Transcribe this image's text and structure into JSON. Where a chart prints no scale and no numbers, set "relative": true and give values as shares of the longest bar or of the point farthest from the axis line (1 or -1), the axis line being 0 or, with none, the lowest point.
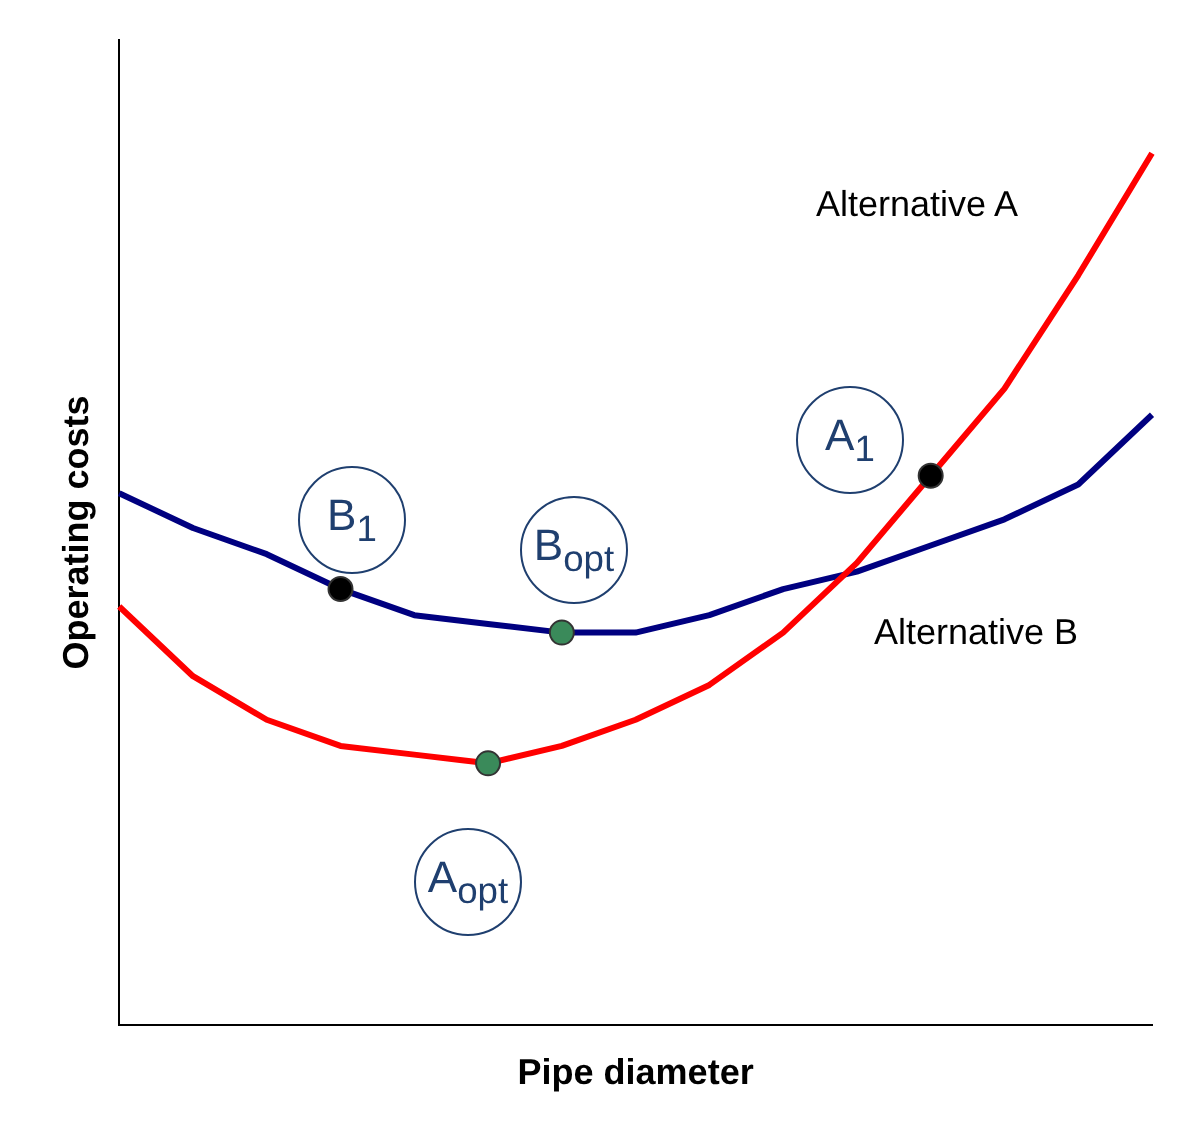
{
  "chart_data": {
    "type": "line",
    "relative": true,
    "xlabel": "Pipe diameter",
    "ylabel": "Operating costs",
    "legend": false,
    "grid": false,
    "categories": [
      null,
      null,
      null,
      null,
      null,
      null,
      null,
      null,
      null,
      null,
      null,
      null,
      null,
      null,
      null
    ],
    "series": [
      {
        "name": "Alternative A",
        "color": "#ff0000",
        "values": [
          0.48,
          0.4,
          0.35,
          0.32,
          0.31,
          0.3,
          0.32,
          0.35,
          0.39,
          0.45,
          0.53,
          0.63,
          0.73,
          0.86,
          1
        ],
        "colors": [
          null,
          null,
          null,
          null,
          null,
          "#3a8a5a",
          null,
          null,
          null,
          null,
          null,
          "#000000",
          null,
          null,
          null
        ]
      },
      {
        "name": "Alternative B",
        "color": "#000080",
        "values": [
          0.61,
          0.57,
          0.54,
          0.5,
          0.47,
          0.46,
          0.45,
          0.45,
          0.47,
          0.5,
          0.52,
          0.55,
          0.58,
          0.62,
          0.7
        ],
        "colors": [
          null,
          null,
          null,
          "#000000",
          null,
          null,
          "#3a8a5a",
          null,
          null,
          null,
          null,
          null,
          null,
          null,
          null
        ]
      }
    ],
    "annotations": [
      "B$_{1}$",
      "B$_{opt}$",
      "A$_{opt}$",
      "A$_{1}$"
    ]
  }
}
